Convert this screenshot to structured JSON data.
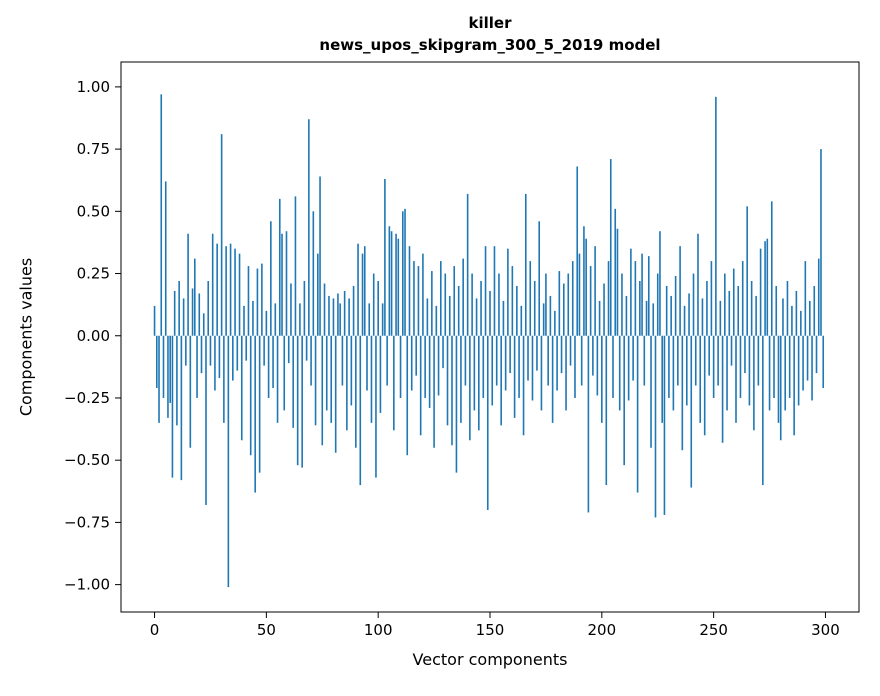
{
  "chart_data": {
    "type": "bar",
    "title_line1": "killer",
    "title_line2": "news_upos_skipgram_300_5_2019 model",
    "xlabel": "Vector components",
    "ylabel": "Components values",
    "bar_color": "#1f77b4",
    "xlim": [
      -15,
      315
    ],
    "ylim": [
      -1.11,
      1.1
    ],
    "xtick_values": [
      0,
      50,
      100,
      150,
      200,
      250,
      300
    ],
    "xtick_labels": [
      "0",
      "50",
      "100",
      "150",
      "200",
      "250",
      "300"
    ],
    "ytick_values": [
      -1.0,
      -0.75,
      -0.5,
      -0.25,
      0.0,
      0.25,
      0.5,
      0.75,
      1.0
    ],
    "ytick_labels": [
      "−1.00",
      "−0.75",
      "−0.50",
      "−0.25",
      "0.00",
      "0.25",
      "0.50",
      "0.75",
      "1.00"
    ],
    "legend": "none",
    "grid": false,
    "values": [
      0.12,
      -0.21,
      -0.35,
      0.97,
      -0.25,
      0.62,
      -0.33,
      -0.27,
      -0.57,
      0.18,
      -0.36,
      0.22,
      -0.58,
      0.15,
      -0.12,
      0.41,
      -0.45,
      0.19,
      0.31,
      -0.25,
      0.17,
      -0.15,
      0.09,
      -0.68,
      0.22,
      -0.12,
      0.41,
      -0.22,
      0.37,
      -0.17,
      0.81,
      -0.35,
      0.36,
      -1.01,
      0.37,
      -0.18,
      0.35,
      -0.14,
      0.33,
      -0.42,
      0.12,
      -0.1,
      0.28,
      -0.48,
      0.14,
      -0.63,
      0.27,
      -0.55,
      0.29,
      -0.12,
      0.1,
      -0.25,
      0.46,
      -0.21,
      0.13,
      -0.35,
      0.55,
      0.41,
      -0.3,
      0.42,
      -0.11,
      0.21,
      -0.37,
      0.56,
      -0.52,
      0.13,
      -0.53,
      0.22,
      -0.1,
      0.87,
      -0.2,
      0.5,
      -0.36,
      0.33,
      0.64,
      -0.44,
      0.21,
      -0.3,
      0.16,
      -0.35,
      0.15,
      -0.47,
      0.17,
      0.13,
      -0.2,
      0.18,
      -0.38,
      0.15,
      -0.28,
      0.2,
      -0.45,
      0.37,
      -0.6,
      0.33,
      0.36,
      -0.22,
      0.13,
      -0.35,
      0.25,
      -0.57,
      0.22,
      -0.31,
      0.13,
      0.63,
      -0.2,
      0.44,
      0.42,
      -0.38,
      0.41,
      0.39,
      -0.25,
      0.5,
      0.51,
      -0.48,
      0.36,
      -0.22,
      0.3,
      -0.16,
      0.28,
      -0.4,
      0.33,
      -0.25,
      0.15,
      -0.29,
      0.26,
      -0.45,
      0.12,
      -0.24,
      0.3,
      -0.13,
      0.25,
      -0.36,
      0.16,
      -0.44,
      0.28,
      -0.55,
      0.2,
      -0.35,
      0.31,
      -0.2,
      0.57,
      -0.42,
      0.25,
      -0.3,
      0.15,
      -0.38,
      0.22,
      -0.25,
      0.36,
      -0.7,
      0.18,
      -0.28,
      0.36,
      -0.2,
      0.25,
      -0.36,
      0.14,
      -0.22,
      0.35,
      -0.15,
      0.28,
      -0.33,
      0.2,
      -0.25,
      0.12,
      -0.4,
      0.57,
      -0.18,
      0.3,
      -0.26,
      0.22,
      -0.14,
      0.46,
      -0.3,
      0.13,
      0.25,
      -0.2,
      0.16,
      -0.35,
      0.1,
      -0.22,
      0.26,
      -0.15,
      0.21,
      -0.3,
      0.25,
      -0.12,
      0.3,
      -0.25,
      0.68,
      0.33,
      -0.2,
      0.44,
      0.39,
      -0.71,
      0.28,
      -0.16,
      0.36,
      -0.24,
      0.14,
      -0.35,
      0.21,
      -0.6,
      0.3,
      0.71,
      -0.25,
      0.51,
      0.43,
      -0.3,
      0.25,
      -0.52,
      0.16,
      -0.26,
      0.35,
      -0.18,
      0.3,
      -0.63,
      0.22,
      0.33,
      -0.2,
      0.14,
      0.32,
      -0.45,
      0.13,
      -0.73,
      0.25,
      0.42,
      -0.35,
      -0.72,
      0.2,
      -0.25,
      0.16,
      -0.3,
      0.24,
      -0.2,
      0.36,
      -0.46,
      0.12,
      -0.28,
      0.17,
      -0.61,
      0.25,
      -0.2,
      0.41,
      -0.35,
      0.15,
      -0.4,
      0.22,
      -0.16,
      0.3,
      -0.25,
      0.96,
      -0.2,
      0.14,
      -0.43,
      0.25,
      -0.3,
      0.18,
      -0.12,
      0.27,
      -0.35,
      0.2,
      -0.25,
      0.3,
      -0.15,
      0.52,
      -0.28,
      0.22,
      -0.38,
      0.16,
      -0.2,
      0.35,
      -0.6,
      0.38,
      0.39,
      -0.3,
      0.54,
      -0.25,
      0.2,
      -0.35,
      -0.42,
      0.15,
      -0.3,
      0.22,
      -0.25,
      0.12,
      -0.4,
      0.18,
      -0.28,
      0.1,
      -0.22,
      0.3,
      -0.18,
      0.14,
      -0.26,
      0.2,
      -0.15,
      0.31,
      0.75,
      -0.21
    ]
  }
}
